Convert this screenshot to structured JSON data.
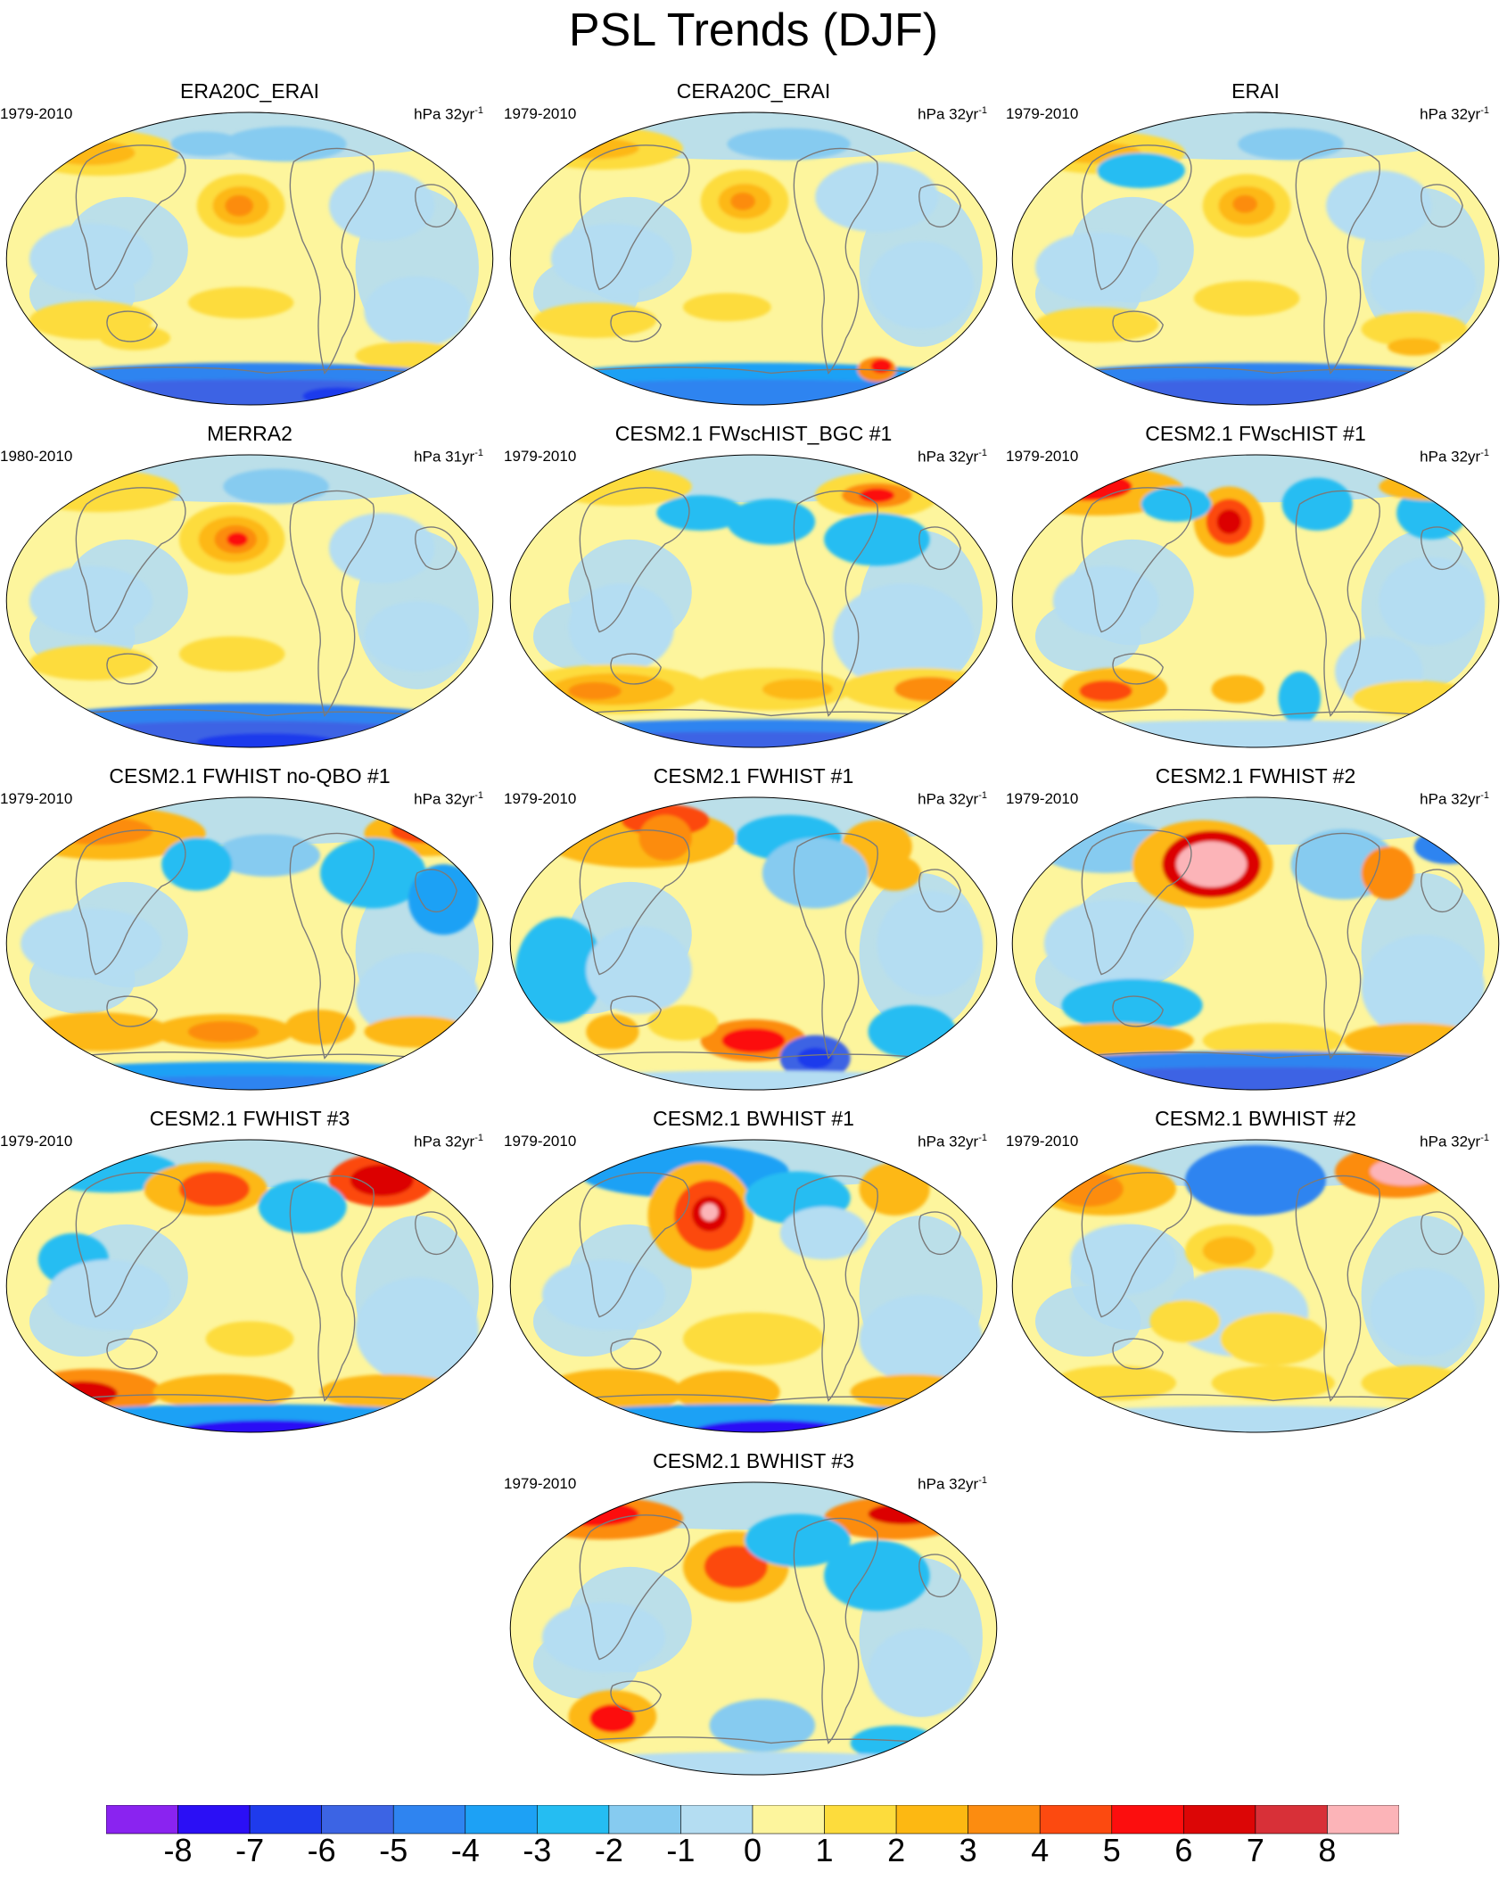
{
  "figure": {
    "title": "PSL Trends (DJF)",
    "units_prefix": "hPa 32yr",
    "units_sup": "-1"
  },
  "panels": [
    {
      "title": "ERA20C_ERAI",
      "period": "1979-2010",
      "units": "hPa 32yr",
      "sup": "-1"
    },
    {
      "title": "CERA20C_ERAI",
      "period": "1979-2010",
      "units": "hPa 32yr",
      "sup": "-1"
    },
    {
      "title": "ERAI",
      "period": "1979-2010",
      "units": "hPa 32yr",
      "sup": "-1"
    },
    {
      "title": "MERRA2",
      "period": "1980-2010",
      "units": "hPa 31yr",
      "sup": "-1"
    },
    {
      "title": "CESM2.1 FWscHIST_BGC #1",
      "period": "1979-2010",
      "units": "hPa 32yr",
      "sup": "-1"
    },
    {
      "title": "CESM2.1 FWscHIST #1",
      "period": "1979-2010",
      "units": "hPa 32yr",
      "sup": "-1"
    },
    {
      "title": "CESM2.1 FWHIST no-QBO #1",
      "period": "1979-2010",
      "units": "hPa 32yr",
      "sup": "-1"
    },
    {
      "title": "CESM2.1 FWHIST #1",
      "period": "1979-2010",
      "units": "hPa 32yr",
      "sup": "-1"
    },
    {
      "title": "CESM2.1 FWHIST #2",
      "period": "1979-2010",
      "units": "hPa 32yr",
      "sup": "-1"
    },
    {
      "title": "CESM2.1 FWHIST #3",
      "period": "1979-2010",
      "units": "hPa 32yr",
      "sup": "-1"
    },
    {
      "title": "CESM2.1 BWHIST #1",
      "period": "1979-2010",
      "units": "hPa 32yr",
      "sup": "-1"
    },
    {
      "title": "CESM2.1 BWHIST #2",
      "period": "1979-2010",
      "units": "hPa 32yr",
      "sup": "-1"
    },
    {
      "title": "CESM2.1 BWHIST #3",
      "period": "1979-2010",
      "units": "hPa 32yr",
      "sup": "-1"
    }
  ],
  "colorbar": {
    "labels": [
      "-8",
      "-7",
      "-6",
      "-5",
      "-4",
      "-3",
      "-2",
      "-1",
      "0",
      "1",
      "2",
      "3",
      "4",
      "5",
      "6",
      "7",
      "8"
    ],
    "colors": [
      "#8a23f0",
      "#2b0ff5",
      "#1f3bec",
      "#3c64e4",
      "#2f84f0",
      "#1da1f5",
      "#25bdf2",
      "#86cbf0",
      "#b4ddf2",
      "#fdf59d",
      "#fddc3c",
      "#fdb812",
      "#fc8c10",
      "#fc4a10",
      "#fc0e0e",
      "#dc0606",
      "#d83038",
      "#fcb4b8"
    ],
    "label_values": [
      -8,
      -7,
      -6,
      -5,
      -4,
      -3,
      -2,
      -1,
      0,
      1,
      2,
      3,
      4,
      5,
      6,
      7,
      8
    ]
  }
}
